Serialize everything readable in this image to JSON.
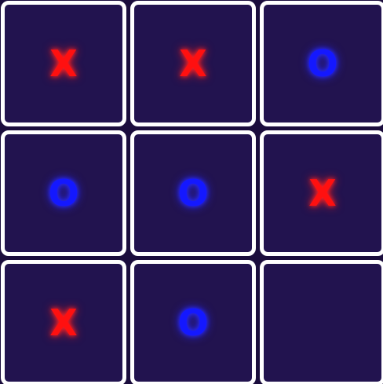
{
  "board": {
    "cells": [
      {
        "mark": "X",
        "player": "x"
      },
      {
        "mark": "X",
        "player": "x"
      },
      {
        "mark": "O",
        "player": "o"
      },
      {
        "mark": "O",
        "player": "o"
      },
      {
        "mark": "O",
        "player": "o"
      },
      {
        "mark": "X",
        "player": "x"
      },
      {
        "mark": "X",
        "player": "x"
      },
      {
        "mark": "O",
        "player": "o"
      },
      {
        "mark": "",
        "player": ""
      }
    ]
  },
  "colors": {
    "x": "#ff1010",
    "o": "#1418ff",
    "cell_background": "#22134f",
    "cell_border": "#ffffff",
    "board_background": "#1b0d3d"
  }
}
